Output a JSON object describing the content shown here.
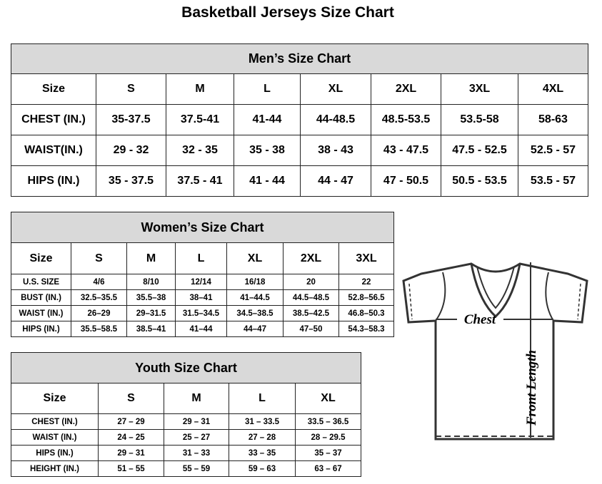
{
  "title": "Basketball Jerseys Size Chart",
  "men": {
    "title": "Men’s Size Chart",
    "header": [
      "Size",
      "S",
      "M",
      "L",
      "XL",
      "2XL",
      "3XL",
      "4XL"
    ],
    "rows": [
      [
        "CHEST (IN.)",
        "35-37.5",
        "37.5-41",
        "41-44",
        "44-48.5",
        "48.5-53.5",
        "53.5-58",
        "58-63"
      ],
      [
        "WAIST(IN.)",
        "29 - 32",
        "32 - 35",
        "35 - 38",
        "38 - 43",
        "43 - 47.5",
        "47.5 - 52.5",
        "52.5 - 57"
      ],
      [
        "HIPS (IN.)",
        "35 - 37.5",
        "37.5 - 41",
        "41 - 44",
        "44 - 47",
        "47 - 50.5",
        "50.5 - 53.5",
        "53.5 - 57"
      ]
    ]
  },
  "women": {
    "title": "Women’s Size Chart",
    "header": [
      "Size",
      "S",
      "M",
      "L",
      "XL",
      "2XL",
      "3XL"
    ],
    "rows": [
      [
        "U.S. SIZE",
        "4/6",
        "8/10",
        "12/14",
        "16/18",
        "20",
        "22"
      ],
      [
        "BUST (IN.)",
        "32.5–35.5",
        "35.5–38",
        "38–41",
        "41–44.5",
        "44.5–48.5",
        "52.8–56.5"
      ],
      [
        "WAIST (IN.)",
        "26–29",
        "29–31.5",
        "31.5–34.5",
        "34.5–38.5",
        "38.5–42.5",
        "46.8–50.3"
      ],
      [
        "HIPS (IN.)",
        "35.5–58.5",
        "38.5–41",
        "41–44",
        "44–47",
        "47–50",
        "54.3–58.3"
      ]
    ]
  },
  "youth": {
    "title": "Youth Size Chart",
    "header": [
      "Size",
      "S",
      "M",
      "L",
      "XL"
    ],
    "rows": [
      [
        "CHEST (IN.)",
        "27 – 29",
        "29 – 31",
        "31 – 33.5",
        "33.5 – 36.5"
      ],
      [
        "WAIST (IN.)",
        "24 – 25",
        "25 – 27",
        "27 – 28",
        "28 – 29.5"
      ],
      [
        "HIPS (IN.)",
        "29 – 31",
        "31 – 33",
        "33 – 35",
        "35 – 37"
      ],
      [
        "HEIGHT (IN.)",
        "51 – 55",
        "55 – 59",
        "59 – 63",
        "63 – 67"
      ]
    ]
  },
  "diagram": {
    "chest_label": "Chest",
    "length_label": "Front Length"
  },
  "colors": {
    "header_bg": "#d9d9d9",
    "border": "#222222"
  }
}
